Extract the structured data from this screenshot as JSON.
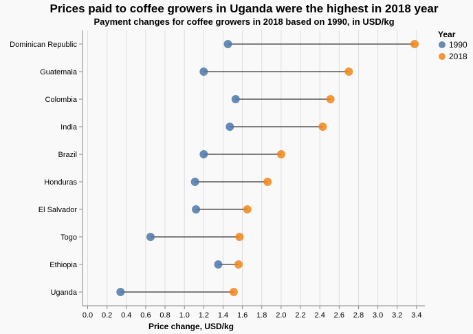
{
  "chart_data": {
    "type": "dumbbell",
    "title": "Prices paid to coffee growers in Uganda were the highest in 2018 year",
    "subtitle": "Payment changes for coffee growers in 2018 based on 1990, in USD/kg",
    "xlabel": "Price change, USD/kg",
    "ylabel": "",
    "xlim": [
      0,
      3.4
    ],
    "x_ticks": [
      "0.0",
      "0.2",
      "0.4",
      "0.6",
      "0.8",
      "1.0",
      "1.2",
      "1.4",
      "1.6",
      "1.8",
      "2.0",
      "2.2",
      "2.4",
      "2.6",
      "2.8",
      "3.0",
      "3.2",
      "3.4"
    ],
    "grid": "vertical",
    "legend": {
      "title": "Year",
      "placement": "top-right",
      "entries": [
        "1990",
        "2018"
      ]
    },
    "categories": [
      "Dominican Republic",
      "Guatemala",
      "Colombia",
      "India",
      "Brazil",
      "Honduras",
      "El Salvador",
      "Togo",
      "Ethiopia",
      "Uganda"
    ],
    "series": [
      {
        "name": "1990",
        "color": "#4c78a8",
        "values": [
          1.45,
          1.2,
          1.53,
          1.47,
          1.2,
          1.11,
          1.12,
          0.65,
          1.35,
          0.34
        ]
      },
      {
        "name": "2018",
        "color": "#f58518",
        "values": [
          3.38,
          2.7,
          2.51,
          2.43,
          2.0,
          1.86,
          1.65,
          1.57,
          1.56,
          1.51
        ]
      }
    ]
  }
}
